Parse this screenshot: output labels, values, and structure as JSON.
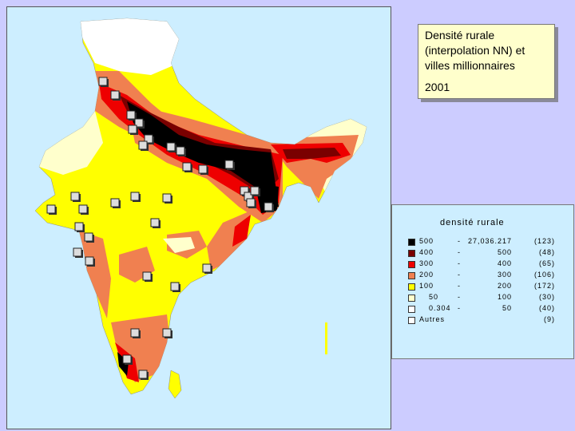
{
  "title": {
    "line1": "Densité rurale",
    "line2": "(interpolation NN) et",
    "line3": "villes millionnaires",
    "year": "2001"
  },
  "legend": {
    "heading": "densité rurale",
    "classes": [
      {
        "min": "500",
        "max": "27,036.217",
        "count": "(123)",
        "color": "#000000"
      },
      {
        "min": "400",
        "max": "500",
        "count": "(48)",
        "color": "#7a0000"
      },
      {
        "min": "300",
        "max": "400",
        "count": "(65)",
        "color": "#ee0000"
      },
      {
        "min": "200",
        "max": "300",
        "count": "(106)",
        "color": "#f08050"
      },
      {
        "min": "100",
        "max": "200",
        "count": "(172)",
        "color": "#ffff00"
      },
      {
        "min": "50",
        "max": "100",
        "count": "(30)",
        "color": "#ffffcc"
      },
      {
        "min": "0.304",
        "max": "50",
        "count": "(40)",
        "color": "#ffffff"
      }
    ],
    "other": {
      "label": "Autres",
      "count": "(9)",
      "color": "#ffffff"
    }
  },
  "colors": {
    "sea": "#cdeeff",
    "background": "#ccccff",
    "title_box": "#ffffcc"
  }
}
